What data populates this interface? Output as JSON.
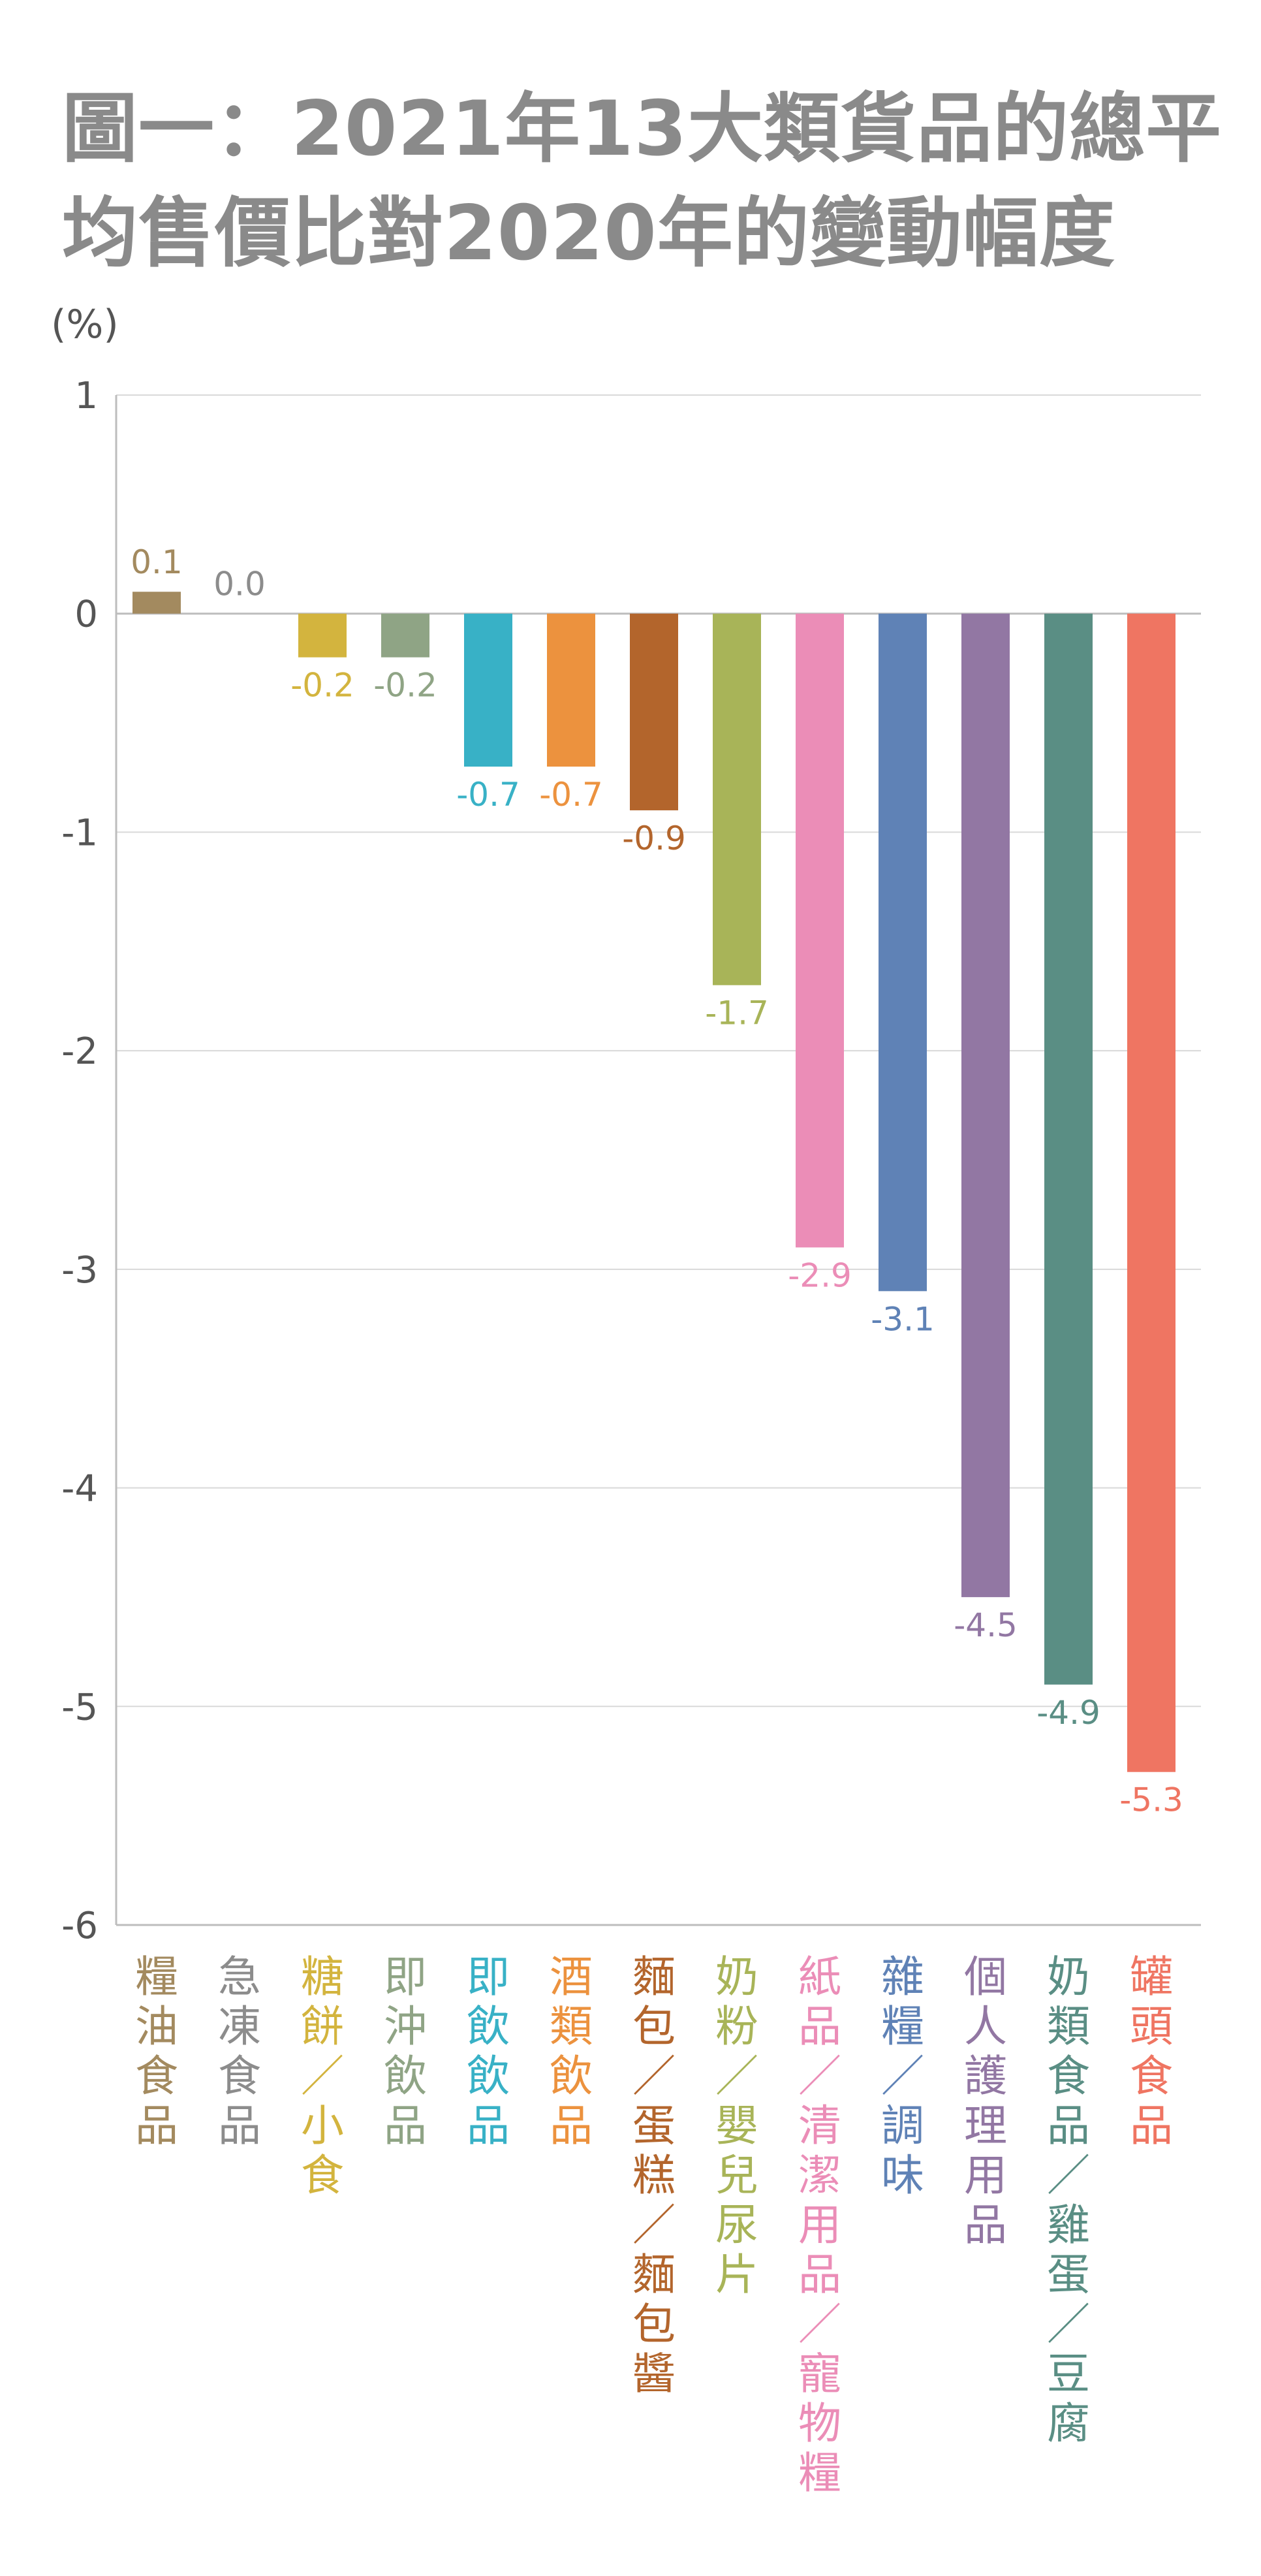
{
  "title": {
    "line1": "圖一：2021年13大類貨品的總平",
    "line2": "均售價比對2020年的變動幅度"
  },
  "chart_data": {
    "type": "bar",
    "title": "圖一：2021年13大類貨品的總平均售價比對2020年的變動幅度",
    "ylabel": "(%)",
    "xlabel": "",
    "ylim": [
      -6,
      1
    ],
    "yticks": [
      "1",
      "0",
      "-1",
      "-2",
      "-3",
      "-4",
      "-5",
      "-6"
    ],
    "grid": true,
    "legend": "none",
    "categories": [
      "糧油食品",
      "急凍食品",
      "糖餅/小食",
      "即沖飲品",
      "即飲飲品",
      "酒類飲品",
      "麵包/蛋糕/麵包醬",
      "奶粉/嬰兒尿片",
      "紙品/清潔用品/寵物糧",
      "雜糧/調味",
      "個人護理用品",
      "奶類食品/雞蛋/豆腐",
      "罐頭食品"
    ],
    "values": [
      0.1,
      0.0,
      -0.2,
      -0.2,
      -0.7,
      -0.7,
      -0.9,
      -1.7,
      -2.9,
      -3.1,
      -4.5,
      -4.9,
      -5.3
    ],
    "value_labels": [
      "0.1",
      "0.0",
      "-0.2",
      "-0.2",
      "-0.7",
      "-0.7",
      "-0.9",
      "-1.7",
      "-2.9",
      "-3.1",
      "-4.5",
      "-4.9",
      "-5.3"
    ],
    "colors": [
      "#A38A5F",
      "#8C8C8C",
      "#D3B43E",
      "#8FA485",
      "#38B1C6",
      "#EC923E",
      "#B3652C",
      "#A8B458",
      "#EB8DB7",
      "#5F82B6",
      "#9277A3",
      "#5A8E84",
      "#EF7562"
    ]
  }
}
